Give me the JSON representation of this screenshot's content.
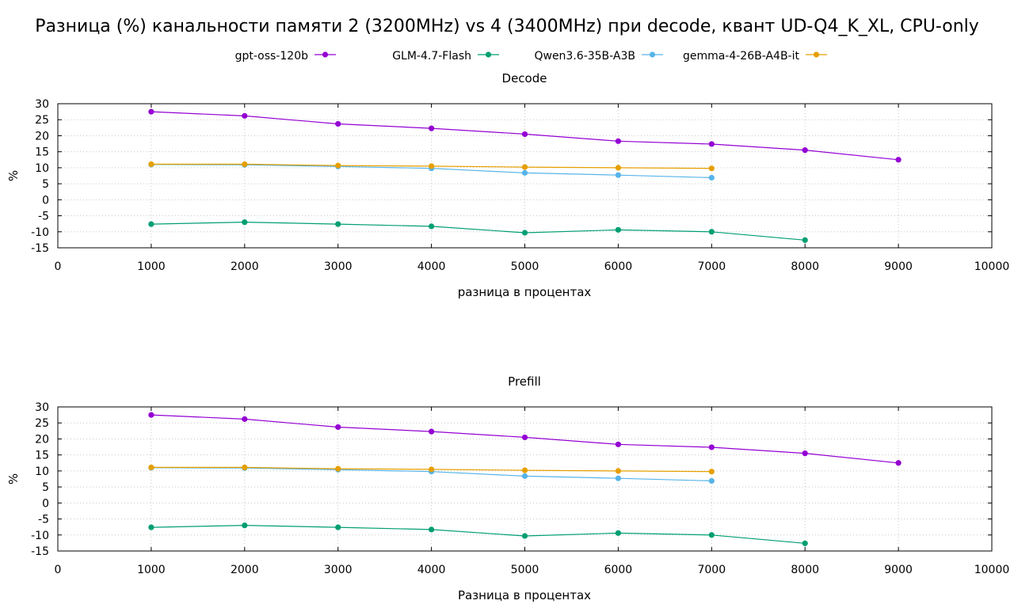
{
  "figure": {
    "title": "Разница (%) канальности памяти 2 (3200MHz) vs 4 (3400MHz) при decode, квант UD-Q4_K_XL, CPU-only"
  },
  "chart_data": [
    {
      "type": "line",
      "title": "Decode",
      "xlabel": "разница в процентах",
      "ylabel": "%",
      "xlim": [
        0,
        10000
      ],
      "ylim": [
        -15,
        30
      ],
      "xticks": [
        0,
        1000,
        2000,
        3000,
        4000,
        5000,
        6000,
        7000,
        8000,
        9000,
        10000
      ],
      "yticks": [
        -15,
        -10,
        -5,
        0,
        5,
        10,
        15,
        20,
        25,
        30
      ],
      "grid": true,
      "legend_position": "top",
      "series": [
        {
          "name": "gpt-oss-120b",
          "color": "#9400d3",
          "x": [
            1000,
            2000,
            3000,
            4000,
            5000,
            6000,
            7000,
            8000,
            9000
          ],
          "values": [
            27.5,
            26.2,
            23.7,
            22.3,
            20.5,
            18.3,
            17.4,
            15.5,
            12.5
          ]
        },
        {
          "name": "GLM-4.7-Flash",
          "color": "#009e73",
          "x": [
            1000,
            2000,
            3000,
            4000,
            5000,
            6000,
            7000,
            8000
          ],
          "values": [
            -7.6,
            -7.0,
            -7.6,
            -8.3,
            -10.3,
            -9.4,
            -10.0,
            -12.6
          ]
        },
        {
          "name": "Qwen3.6-35B-A3B",
          "color": "#56b4e9",
          "x": [
            1000,
            2000,
            3000,
            4000,
            5000,
            6000,
            7000
          ],
          "values": [
            11.0,
            10.9,
            10.4,
            9.8,
            8.4,
            7.7,
            6.9
          ]
        },
        {
          "name": "gemma-4-26B-A4B-it",
          "color": "#e69f00",
          "x": [
            1000,
            2000,
            3000,
            4000,
            5000,
            6000,
            7000
          ],
          "values": [
            11.1,
            11.1,
            10.7,
            10.5,
            10.2,
            10.0,
            9.8
          ]
        }
      ]
    },
    {
      "type": "line",
      "title": "Prefill",
      "xlabel": "Разница в процентах",
      "ylabel": "%",
      "xlim": [
        0,
        10000
      ],
      "ylim": [
        -15,
        30
      ],
      "xticks": [
        0,
        1000,
        2000,
        3000,
        4000,
        5000,
        6000,
        7000,
        8000,
        9000,
        10000
      ],
      "yticks": [
        -15,
        -10,
        -5,
        0,
        5,
        10,
        15,
        20,
        25,
        30
      ],
      "grid": true,
      "series": [
        {
          "name": "gpt-oss-120b",
          "color": "#9400d3",
          "x": [
            1000,
            2000,
            3000,
            4000,
            5000,
            6000,
            7000,
            8000,
            9000
          ],
          "values": [
            27.5,
            26.2,
            23.7,
            22.3,
            20.5,
            18.3,
            17.4,
            15.5,
            12.5
          ]
        },
        {
          "name": "GLM-4.7-Flash",
          "color": "#009e73",
          "x": [
            1000,
            2000,
            3000,
            4000,
            5000,
            6000,
            7000,
            8000
          ],
          "values": [
            -7.6,
            -7.0,
            -7.6,
            -8.3,
            -10.3,
            -9.4,
            -10.0,
            -12.6
          ]
        },
        {
          "name": "Qwen3.6-35B-A3B",
          "color": "#56b4e9",
          "x": [
            1000,
            2000,
            3000,
            4000,
            5000,
            6000,
            7000
          ],
          "values": [
            11.0,
            10.9,
            10.4,
            9.8,
            8.4,
            7.7,
            6.9
          ]
        },
        {
          "name": "gemma-4-26B-A4B-it",
          "color": "#e69f00",
          "x": [
            1000,
            2000,
            3000,
            4000,
            5000,
            6000,
            7000
          ],
          "values": [
            11.1,
            11.1,
            10.7,
            10.5,
            10.2,
            10.0,
            9.8
          ]
        }
      ]
    }
  ]
}
